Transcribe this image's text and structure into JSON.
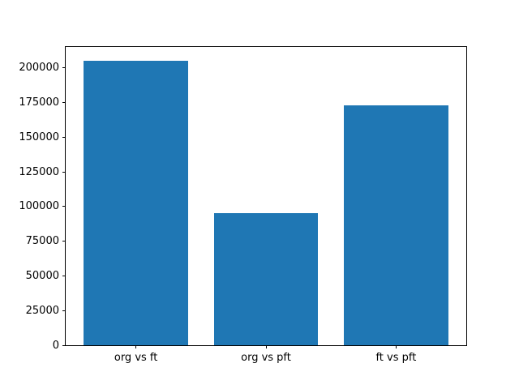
{
  "chart_data": {
    "type": "bar",
    "categories": [
      "org vs ft",
      "org vs pft",
      "ft vs pft"
    ],
    "values": [
      204900,
      95300,
      172700
    ],
    "title": "",
    "xlabel": "",
    "ylabel": "",
    "ylim": [
      0,
      215000
    ],
    "yticks": [
      0,
      25000,
      50000,
      75000,
      100000,
      125000,
      150000,
      175000,
      200000
    ],
    "bar_color": "#1f77b4",
    "axis_color": "#000000",
    "background_color": "#ffffff",
    "bar_width_fraction": 0.8,
    "grid": false,
    "legend": null
  }
}
